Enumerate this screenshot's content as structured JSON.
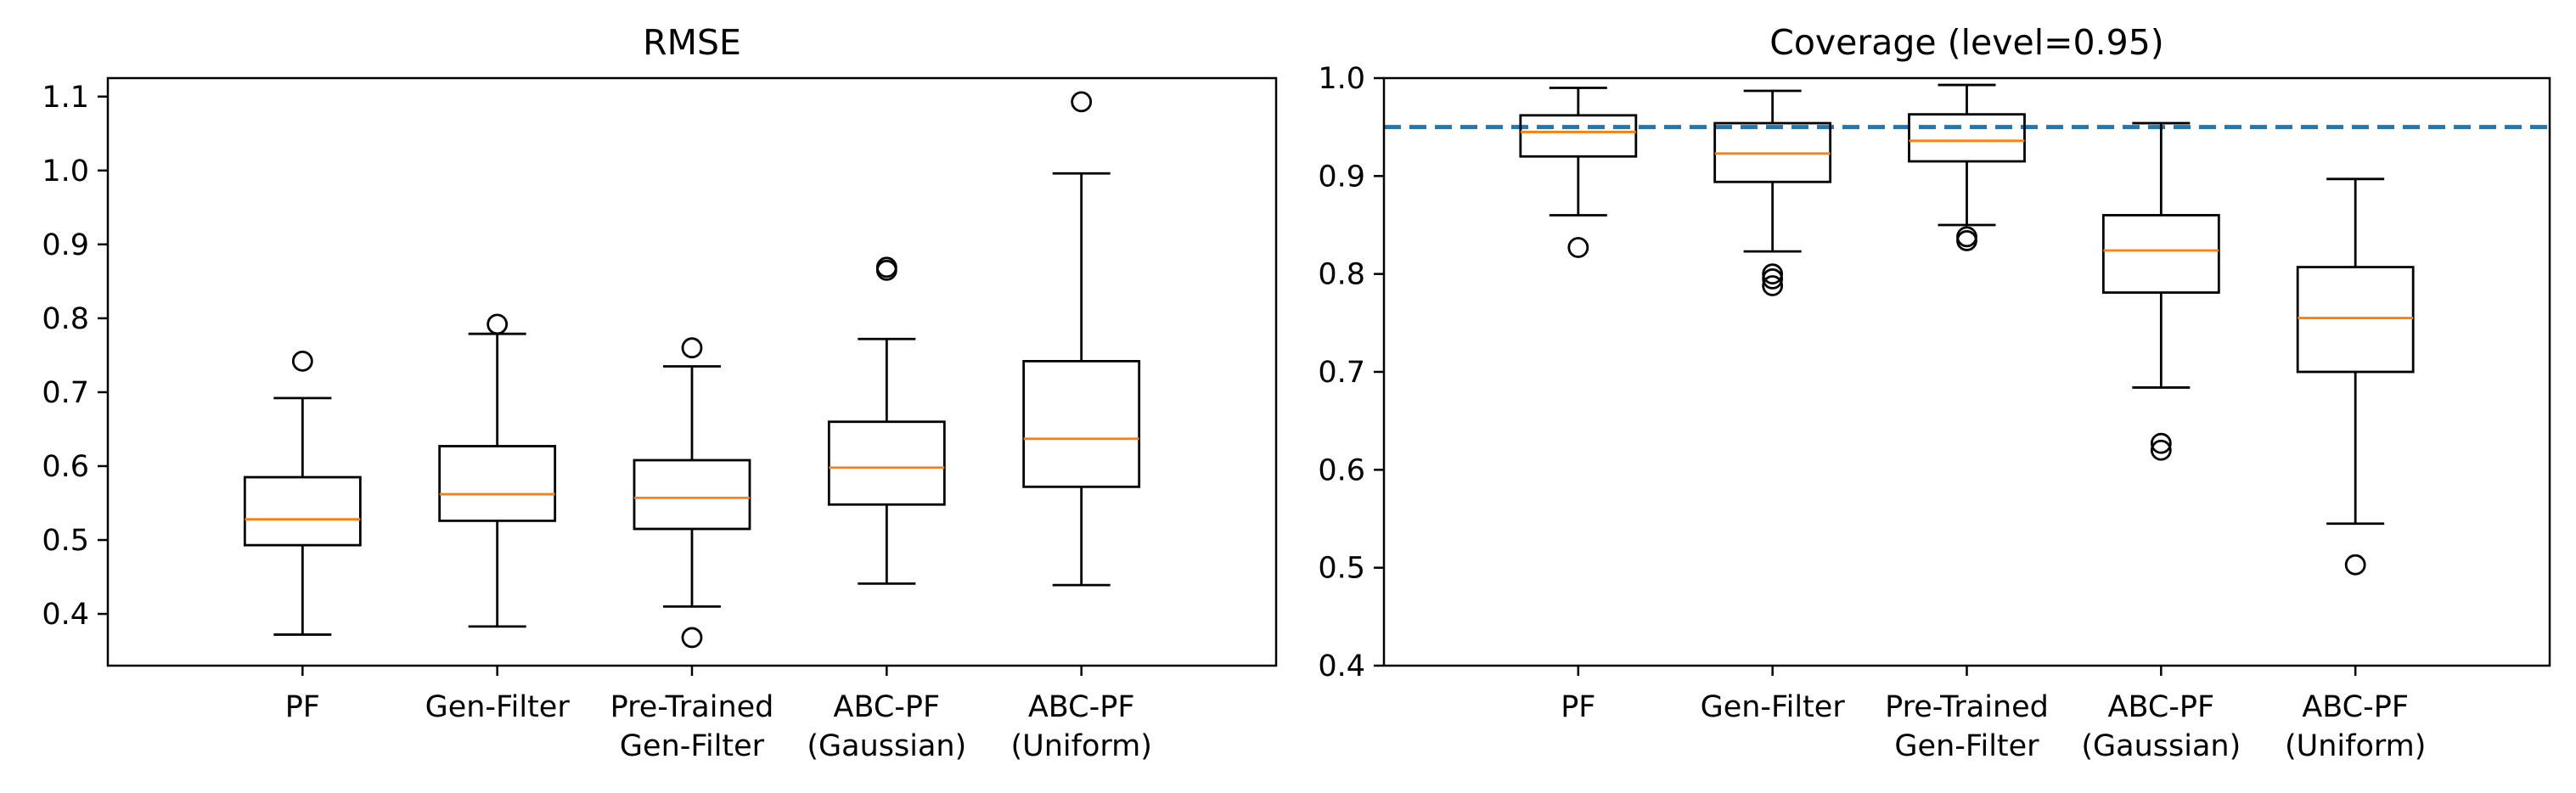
{
  "colors": {
    "median": "#ff7f0e",
    "reference_line": "#1f77b4",
    "box": "#000000"
  },
  "chart_data": [
    {
      "type": "box",
      "title": "RMSE",
      "xlabel": "",
      "ylabel": "",
      "ylim": [
        0.33,
        1.125
      ],
      "yticks": [
        "0.4",
        "0.5",
        "0.6",
        "0.7",
        "0.8",
        "0.9",
        "1.0",
        "1.1"
      ],
      "categories": [
        [
          "PF"
        ],
        [
          "Gen-Filter"
        ],
        [
          "Pre-Trained",
          "Gen-Filter"
        ],
        [
          "ABC-PF",
          "(Gaussian)"
        ],
        [
          "ABC-PF",
          "(Uniform)"
        ]
      ],
      "series": [
        {
          "name": "PF",
          "whisker_low": 0.372,
          "q1": 0.493,
          "median": 0.528,
          "q3": 0.585,
          "whisker_high": 0.692,
          "outliers": [
            0.742
          ]
        },
        {
          "name": "Gen-Filter",
          "whisker_low": 0.383,
          "q1": 0.526,
          "median": 0.562,
          "q3": 0.627,
          "whisker_high": 0.779,
          "outliers": [
            0.792
          ]
        },
        {
          "name": "Pre-Trained Gen-Filter",
          "whisker_low": 0.41,
          "q1": 0.515,
          "median": 0.557,
          "q3": 0.608,
          "whisker_high": 0.735,
          "outliers": [
            0.76,
            0.368
          ]
        },
        {
          "name": "ABC-PF (Gaussian)",
          "whisker_low": 0.441,
          "q1": 0.548,
          "median": 0.598,
          "q3": 0.66,
          "whisker_high": 0.772,
          "outliers": [
            0.865,
            0.869
          ]
        },
        {
          "name": "ABC-PF (Uniform)",
          "whisker_low": 0.439,
          "q1": 0.572,
          "median": 0.637,
          "q3": 0.742,
          "whisker_high": 0.996,
          "outliers": [
            1.093
          ]
        }
      ]
    },
    {
      "type": "box",
      "title": "Coverage (level=0.95)",
      "xlabel": "",
      "ylabel": "",
      "ylim": [
        0.4,
        1.0
      ],
      "yticks": [
        "0.4",
        "0.5",
        "0.6",
        "0.7",
        "0.8",
        "0.9",
        "1.0"
      ],
      "reference_line": 0.95,
      "categories": [
        [
          "PF"
        ],
        [
          "Gen-Filter"
        ],
        [
          "Pre-Trained",
          "Gen-Filter"
        ],
        [
          "ABC-PF",
          "(Gaussian)"
        ],
        [
          "ABC-PF",
          "(Uniform)"
        ]
      ],
      "series": [
        {
          "name": "PF",
          "whisker_low": 0.86,
          "q1": 0.92,
          "median": 0.945,
          "q3": 0.962,
          "whisker_high": 0.99,
          "outliers": [
            0.827
          ]
        },
        {
          "name": "Gen-Filter",
          "whisker_low": 0.823,
          "q1": 0.894,
          "median": 0.923,
          "q3": 0.954,
          "whisker_high": 0.987,
          "outliers": [
            0.8,
            0.795,
            0.788
          ]
        },
        {
          "name": "Pre-Trained Gen-Filter",
          "whisker_low": 0.85,
          "q1": 0.915,
          "median": 0.936,
          "q3": 0.963,
          "whisker_high": 0.993,
          "outliers": [
            0.838,
            0.834
          ]
        },
        {
          "name": "ABC-PF (Gaussian)",
          "whisker_low": 0.684,
          "q1": 0.781,
          "median": 0.824,
          "q3": 0.86,
          "whisker_high": 0.954,
          "outliers": [
            0.627,
            0.62
          ]
        },
        {
          "name": "ABC-PF (Uniform)",
          "whisker_low": 0.545,
          "q1": 0.7,
          "median": 0.755,
          "q3": 0.807,
          "whisker_high": 0.897,
          "outliers": [
            0.503
          ]
        }
      ]
    }
  ]
}
